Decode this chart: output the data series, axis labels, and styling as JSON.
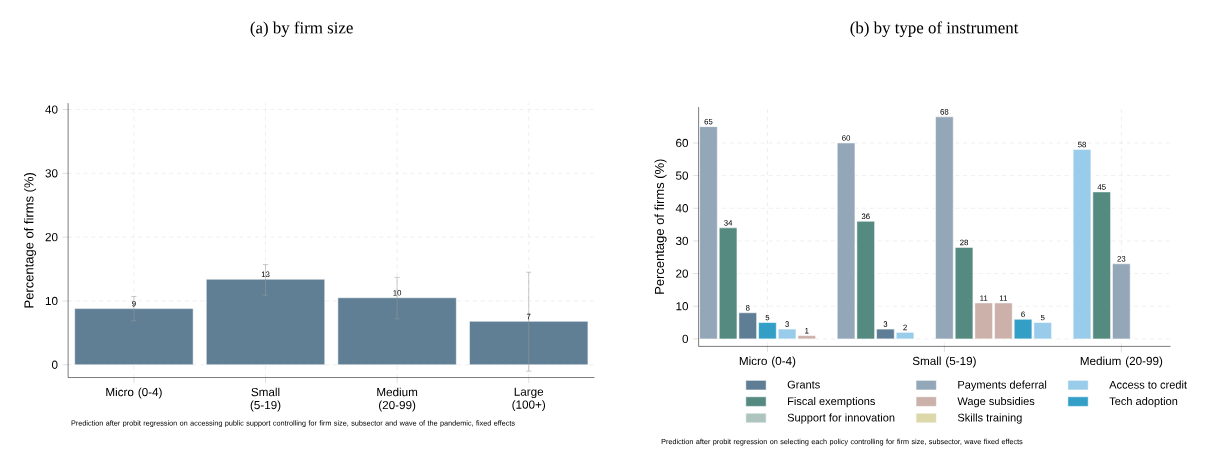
{
  "chart_data": [
    {
      "type": "bar",
      "title": "(a) by firm size",
      "ylabel": "Percentage of firms (%)",
      "categories": [
        "Micro (0-4)",
        "Small (5-19)",
        "Medium (20-99)",
        "Large (100+)"
      ],
      "values": [
        8.8,
        13.4,
        10.5,
        6.8
      ],
      "value_labels": [
        "9",
        "13",
        "10",
        "7"
      ],
      "color": "#617f94",
      "errors": [
        [
          6.9,
          10.7
        ],
        [
          10.9,
          15.7
        ],
        [
          7.2,
          13.7
        ],
        [
          -1.0,
          14.5
        ]
      ],
      "ylim": [
        -2,
        41
      ],
      "yticks": [
        0,
        10,
        20,
        30,
        40
      ],
      "grid": true,
      "legend": false,
      "annotations": [
        "Prediction after probit regression on accessing public support controlling for firm size, subsector and wave of the pandemic, fixed effects"
      ]
    },
    {
      "type": "bar",
      "title": "(b) by type of instrument",
      "ylabel": "Percentage of firms (%)",
      "categories": [
        null,
        null,
        null,
        "Micro (0-4)",
        null,
        null,
        null,
        null,
        null,
        null,
        null,
        null,
        "Small (5-19)",
        null,
        null,
        null,
        null,
        null,
        null,
        null,
        null,
        "Medium (20-99)",
        null,
        null
      ],
      "series": [
        {
          "name": "Grants",
          "color": "#5f7d95",
          "values": [
            null,
            null,
            8,
            null,
            null,
            null,
            null,
            null,
            null,
            3,
            null,
            null,
            null,
            null,
            null,
            null,
            null,
            null,
            null,
            null,
            null,
            null,
            null,
            null
          ]
        },
        {
          "name": "Payments deferral",
          "color": "#94a7b8",
          "values": [
            65,
            null,
            null,
            null,
            null,
            null,
            null,
            60,
            null,
            null,
            null,
            null,
            68,
            null,
            null,
            null,
            null,
            null,
            null,
            null,
            null,
            23,
            null,
            null
          ]
        },
        {
          "name": "Access to credit",
          "color": "#99cbea",
          "values": [
            null,
            null,
            null,
            null,
            3,
            null,
            null,
            null,
            null,
            null,
            2,
            null,
            null,
            null,
            null,
            null,
            null,
            5,
            null,
            58,
            null,
            null,
            null,
            null
          ]
        },
        {
          "name": "Fiscal exemptions",
          "color": "#548a7f",
          "values": [
            null,
            34,
            null,
            null,
            null,
            null,
            null,
            null,
            36,
            null,
            null,
            null,
            null,
            28,
            null,
            null,
            null,
            null,
            null,
            null,
            45,
            null,
            null,
            null
          ]
        },
        {
          "name": "Wage subsidies",
          "color": "#cbb1aa",
          "values": [
            null,
            null,
            null,
            null,
            null,
            1,
            null,
            null,
            null,
            null,
            null,
            null,
            null,
            null,
            11,
            11,
            null,
            null,
            null,
            null,
            null,
            null,
            null,
            null
          ]
        },
        {
          "name": "Tech adoption",
          "color": "#339fc7",
          "values": [
            null,
            null,
            null,
            5,
            null,
            null,
            null,
            null,
            null,
            null,
            null,
            null,
            null,
            null,
            null,
            null,
            6,
            null,
            null,
            null,
            null,
            null,
            null,
            null
          ]
        },
        {
          "name": "Support for innovation",
          "color": "#aec5bf",
          "values": [
            null,
            null,
            null,
            null,
            null,
            null,
            null,
            null,
            null,
            null,
            null,
            null,
            null,
            null,
            null,
            null,
            null,
            null,
            null,
            null,
            null,
            null,
            null,
            null
          ]
        },
        {
          "name": "Skills training",
          "color": "#ddd8aa",
          "values": [
            null,
            null,
            null,
            null,
            null,
            null,
            null,
            null,
            null,
            null,
            null,
            null,
            null,
            null,
            null,
            null,
            null,
            null,
            null,
            null,
            null,
            null,
            null,
            null
          ]
        }
      ],
      "data_labels": true,
      "ylim": [
        -2.3,
        71
      ],
      "yticks": [
        0,
        10,
        20,
        30,
        40,
        50,
        60
      ],
      "grid": true,
      "legend": "bottom",
      "annotations": [
        "Prediction after probit regression on selecting each policy controlling for firm size, subsector, wave fixed effects"
      ]
    }
  ]
}
